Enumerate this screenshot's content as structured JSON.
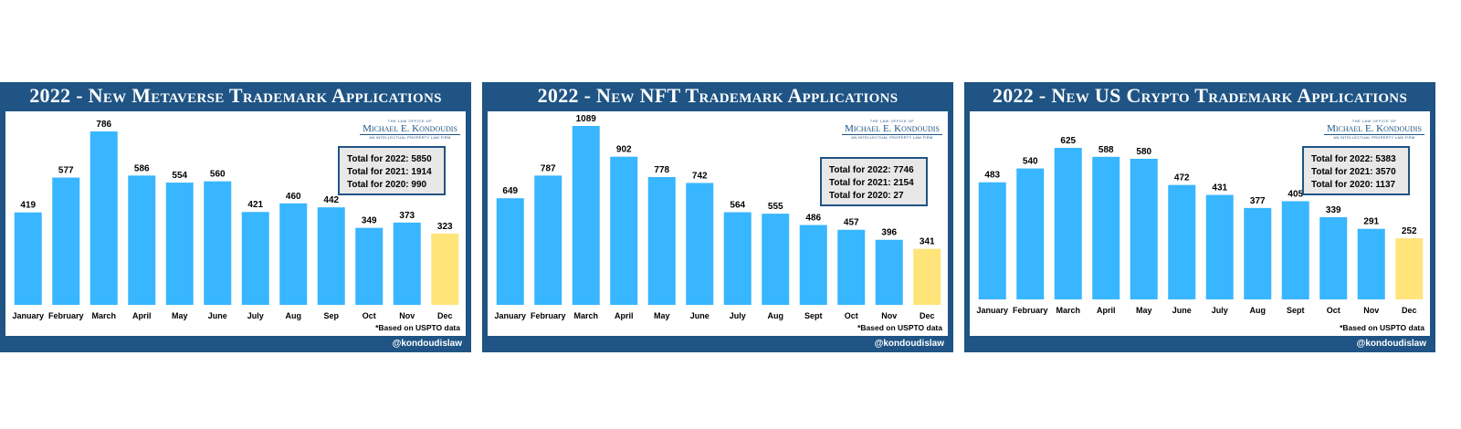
{
  "handle": "@kondoudislaw",
  "note": "*Based on USPTO data",
  "logo": {
    "line1": "THE LAW OFFICE OF",
    "line2": "Michael E. Kondoudis",
    "line3": "AN INTELLECTUAL PROPERTY LAW FIRM"
  },
  "colors": {
    "bar": "#38b6ff",
    "highlight": "#ffe47a",
    "frame": "#1f5484"
  },
  "panels": [
    {
      "title": "2022 - New Metaverse Trademark Applications",
      "totals": [
        "Total for 2022: 5850",
        "Total for 2021: 1914",
        "Total for 2020: 990"
      ]
    },
    {
      "title": "2022 - New NFT Trademark Applications",
      "totals": [
        "Total for 2022: 7746",
        "Total for 2021: 2154",
        "Total for 2020: 27"
      ]
    },
    {
      "title": "2022 - New US Crypto Trademark Applications",
      "totals": [
        "Total for 2022: 5383",
        "Total for 2021: 3570",
        "Total for 2020: 1137"
      ]
    }
  ],
  "chart_data": [
    {
      "type": "bar",
      "title": "2022 - New Metaverse Trademark Applications",
      "categories": [
        "January",
        "February",
        "March",
        "April",
        "May",
        "June",
        "July",
        "Aug",
        "Sep",
        "Oct",
        "Nov",
        "Dec"
      ],
      "values": [
        419,
        577,
        786,
        586,
        554,
        560,
        421,
        460,
        442,
        349,
        373,
        323
      ],
      "highlight_index": 11
    },
    {
      "type": "bar",
      "title": "2022 - New NFT Trademark Applications",
      "categories": [
        "January",
        "February",
        "March",
        "April",
        "May",
        "June",
        "July",
        "Aug",
        "Sept",
        "Oct",
        "Nov",
        "Dec"
      ],
      "values": [
        649,
        787,
        1089,
        902,
        778,
        742,
        564,
        555,
        486,
        457,
        396,
        341
      ],
      "highlight_index": 11
    },
    {
      "type": "bar",
      "title": "2022 - New US Crypto Trademark Applications",
      "categories": [
        "January",
        "February",
        "March",
        "April",
        "May",
        "June",
        "July",
        "Aug",
        "Sept",
        "Oct",
        "Nov",
        "Dec"
      ],
      "values": [
        483,
        540,
        625,
        588,
        580,
        472,
        431,
        377,
        405,
        339,
        291,
        252
      ],
      "highlight_index": 11
    }
  ]
}
